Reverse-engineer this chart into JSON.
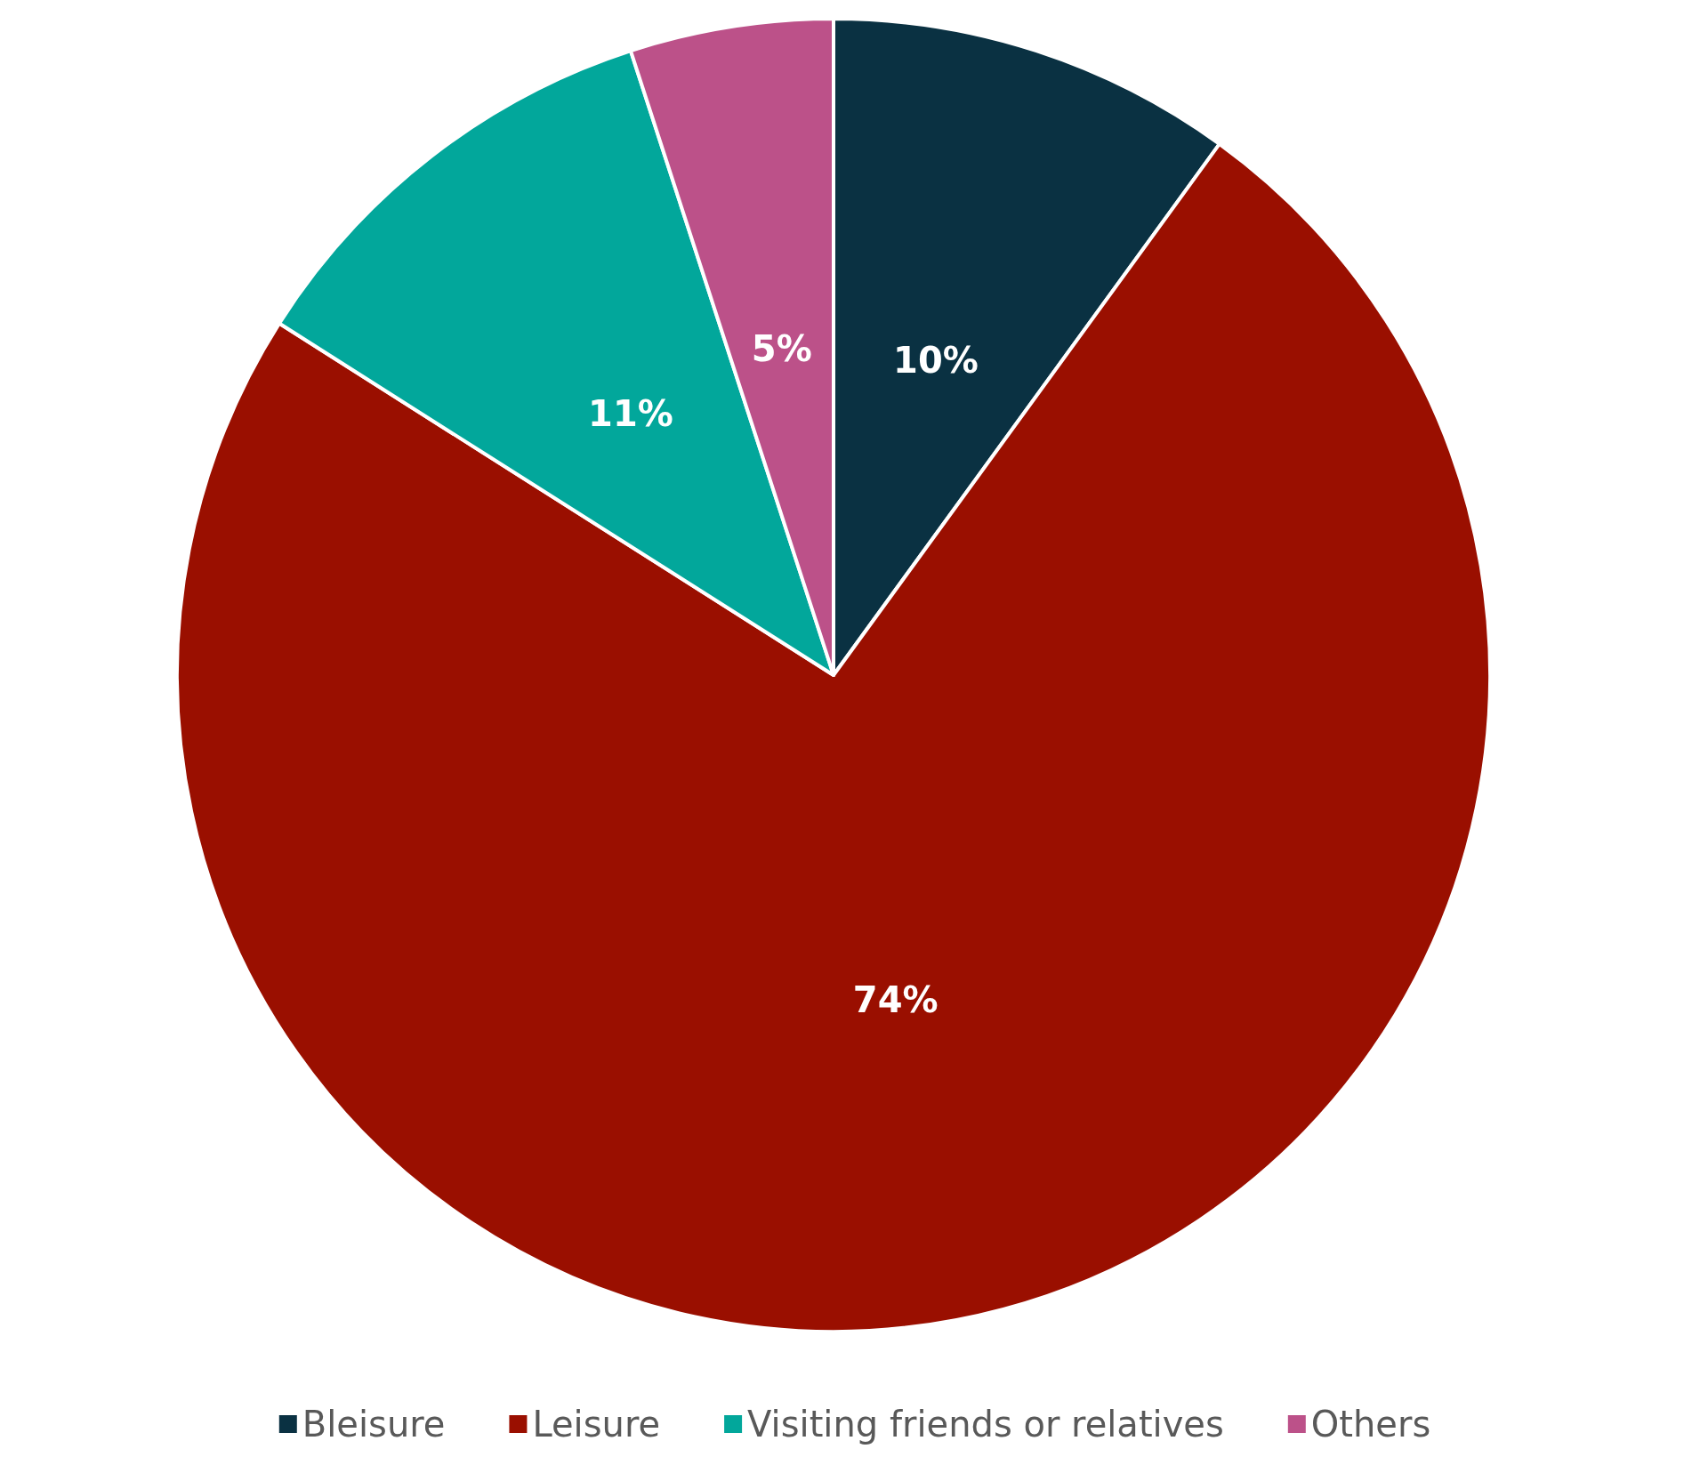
{
  "chart_data": {
    "type": "pie",
    "categories": [
      "Bleisure",
      "Leisure",
      "Visiting friends or relatives",
      "Others"
    ],
    "values": [
      10,
      74,
      11,
      5
    ],
    "colors": [
      "#0a3142",
      "#9a0f00",
      "#02a79b",
      "#bc5189"
    ],
    "value_labels": [
      "10%",
      "74%",
      "11%",
      "5%"
    ],
    "legend": "bottom"
  }
}
